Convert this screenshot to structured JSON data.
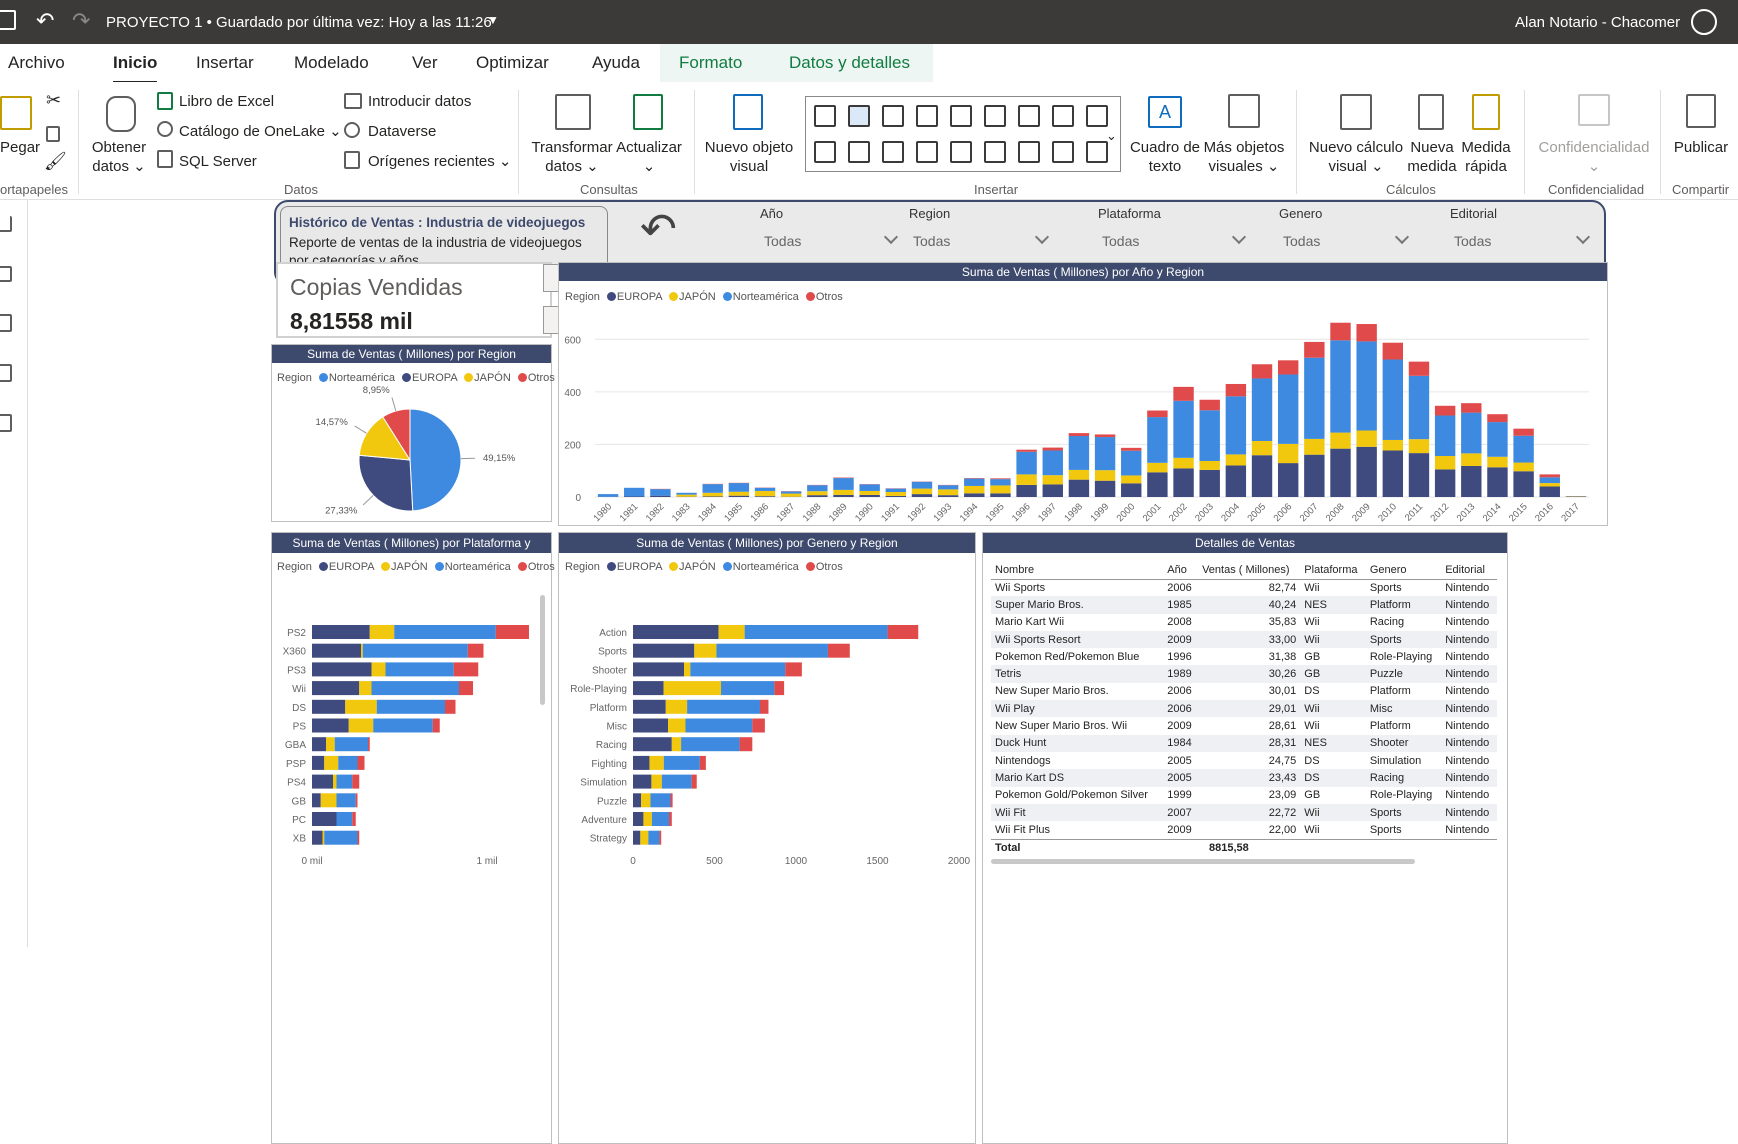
{
  "titlebar": {
    "title": "PROYECTO 1 • Guardado por última vez: Hoy a las 11:26",
    "user": "Alan Notario - Chacomer"
  },
  "menu": {
    "items": [
      "Archivo",
      "Inicio",
      "Insertar",
      "Modelado",
      "Ver",
      "Optimizar",
      "Ayuda"
    ],
    "context": [
      "Formato",
      "Datos y detalles"
    ]
  },
  "ribbon": {
    "pegar": "Pegar",
    "portapapeles": "ortapapeles",
    "obtener1": "Obtener",
    "obtener2": "datos",
    "excel": "Libro de Excel",
    "onelake": "Catálogo de OneLake",
    "sql": "SQL Server",
    "introducir": "Introducir datos",
    "dataverse": "Dataverse",
    "origenes": "Orígenes recientes",
    "datos": "Datos",
    "transformar1": "Transformar",
    "transformar2": "datos",
    "actualizar": "Actualizar",
    "consultas": "Consultas",
    "nuevo1": "Nuevo objeto",
    "nuevo2": "visual",
    "cuadro1": "Cuadro de",
    "cuadro2": "texto",
    "mas1": "Más objetos",
    "mas2": "visuales",
    "insertar": "Insertar",
    "calc1": "Nuevo cálculo",
    "calc2": "visual",
    "medida1": "Nueva",
    "medida2": "medida",
    "rapida1": "Medida",
    "rapida2": "rápida",
    "calculos": "Cálculos",
    "conf": "Confidencialidad",
    "confgroup": "Confidencialidad",
    "publicar": "Publicar",
    "compartir": "Compartir"
  },
  "header": {
    "title": "Histórico de Ventas : Industria de videojuegos",
    "subtitle1": "Reporte de ventas de la industria de videojuegos",
    "subtitle2": "por categorías y años"
  },
  "slicers": [
    {
      "label": "Año",
      "value": "Todas"
    },
    {
      "label": "Region",
      "value": "Todas"
    },
    {
      "label": "Plataforma",
      "value": "Todas"
    },
    {
      "label": "Genero",
      "value": "Todas"
    },
    {
      "label": "Editorial",
      "value": "Todas"
    }
  ],
  "card": {
    "label": "Copias Vendidas",
    "value": "8,81558 mil"
  },
  "colors": {
    "EUROPA": "#3f4b7e",
    "JAPON": "#f2c80f",
    "Norteamerica": "#3e8ae0",
    "Otros": "#e04a4a",
    "header": "#3e4a6d"
  },
  "legend_title": "Region",
  "pie": {
    "title": "Suma de Ventas ( Millones) por Region",
    "legend": [
      "Norteamérica",
      "EUROPA",
      "JAPÓN",
      "Otros"
    ],
    "chart_data": {
      "type": "pie",
      "labels": [
        "Norteamérica",
        "EUROPA",
        "JAPÓN",
        "Otros"
      ],
      "values": [
        49.15,
        27.33,
        14.57,
        8.95
      ],
      "data_labels": [
        "49,15%",
        "27,33%",
        "14,57%",
        "8,95%"
      ]
    }
  },
  "yearchart": {
    "title": "Suma de Ventas ( Millones) por Año y Region",
    "legend": [
      "EUROPA",
      "JAPÓN",
      "Norteamérica",
      "Otros"
    ],
    "yticks": [
      "0",
      "200",
      "400",
      "600"
    ],
    "chart_data": {
      "type": "bar",
      "stacked": true,
      "ylim": [
        0,
        700
      ],
      "categories": [
        "1980",
        "1981",
        "1982",
        "1983",
        "1984",
        "1985",
        "1986",
        "1987",
        "1988",
        "1989",
        "1990",
        "1991",
        "1992",
        "1993",
        "1994",
        "1995",
        "1996",
        "1997",
        "1998",
        "1999",
        "2000",
        "2001",
        "2002",
        "2003",
        "2004",
        "2005",
        "2006",
        "2007",
        "2008",
        "2009",
        "2010",
        "2011",
        "2012",
        "2013",
        "2014",
        "2015",
        "2016",
        "2017"
      ],
      "series": [
        {
          "name": "EUROPA",
          "values": [
            1,
            2,
            5,
            1,
            2,
            5,
            3,
            1,
            7,
            8,
            8,
            4,
            11,
            7,
            14,
            14,
            46,
            48,
            66,
            62,
            52,
            94,
            109,
            103,
            120,
            159,
            129,
            161,
            184,
            191,
            177,
            167,
            105,
            118,
            113,
            98,
            40,
            2
          ]
        },
        {
          "name": "JAPÓN",
          "values": [
            0,
            0,
            0,
            8,
            14,
            15,
            20,
            12,
            15,
            19,
            15,
            15,
            21,
            22,
            28,
            30,
            40,
            35,
            37,
            40,
            30,
            36,
            40,
            34,
            42,
            54,
            73,
            60,
            61,
            62,
            40,
            53,
            51,
            48,
            40,
            33,
            13,
            1
          ]
        },
        {
          "name": "Norteamérica",
          "values": [
            10,
            33,
            25,
            7,
            33,
            33,
            12,
            8,
            23,
            45,
            25,
            13,
            26,
            16,
            28,
            24,
            86,
            94,
            129,
            126,
            94,
            174,
            217,
            193,
            221,
            238,
            264,
            309,
            351,
            339,
            306,
            241,
            154,
            155,
            132,
            102,
            22,
            0
          ]
        },
        {
          "name": "Otros",
          "values": [
            0,
            0,
            1,
            0,
            1,
            1,
            1,
            1,
            1,
            2,
            1,
            1,
            1,
            1,
            2,
            3,
            8,
            11,
            11,
            10,
            11,
            25,
            53,
            40,
            47,
            54,
            54,
            60,
            67,
            66,
            64,
            54,
            37,
            36,
            30,
            27,
            11,
            0
          ]
        }
      ]
    }
  },
  "platchart": {
    "title": "Suma de Ventas ( Millones) por Plataforma y Region",
    "legend": [
      "EUROPA",
      "JAPÓN",
      "Norteamérica",
      "Otros"
    ],
    "xticks": [
      "0 mil",
      "1 mil"
    ],
    "chart_data": {
      "type": "bar",
      "orientation": "horizontal",
      "stacked": true,
      "xlim": [
        0,
        1.2
      ],
      "categories": [
        "PS2",
        "X360",
        "PS3",
        "Wii",
        "DS",
        "PS",
        "GBA",
        "PSP",
        "PS4",
        "GB",
        "PC",
        "XB"
      ],
      "series": [
        {
          "name": "EUROPA",
          "values": [
            0.33,
            0.28,
            0.34,
            0.27,
            0.19,
            0.21,
            0.08,
            0.07,
            0.12,
            0.05,
            0.14,
            0.06
          ]
        },
        {
          "name": "JAPÓN",
          "values": [
            0.14,
            0.01,
            0.08,
            0.07,
            0.18,
            0.14,
            0.05,
            0.08,
            0.02,
            0.09,
            0.0,
            0.01
          ]
        },
        {
          "name": "Norteamérica",
          "values": [
            0.58,
            0.6,
            0.39,
            0.5,
            0.39,
            0.34,
            0.19,
            0.11,
            0.09,
            0.11,
            0.09,
            0.19
          ]
        },
        {
          "name": "Otros",
          "values": [
            0.19,
            0.09,
            0.14,
            0.08,
            0.06,
            0.04,
            0.01,
            0.04,
            0.04,
            0.01,
            0.02,
            0.01
          ]
        }
      ]
    }
  },
  "genrechart": {
    "title": "Suma de Ventas ( Millones) por Genero y Region",
    "legend": [
      "EUROPA",
      "JAPÓN",
      "Norteamérica",
      "Otros"
    ],
    "xticks": [
      "0",
      "500",
      "1000",
      "1500",
      "2000"
    ],
    "chart_data": {
      "type": "bar",
      "orientation": "horizontal",
      "stacked": true,
      "xlim": [
        0,
        2000
      ],
      "categories": [
        "Action",
        "Sports",
        "Shooter",
        "Role-Playing",
        "Platform",
        "Misc",
        "Racing",
        "Fighting",
        "Simulation",
        "Puzzle",
        "Adventure",
        "Strategy"
      ],
      "series": [
        {
          "name": "EUROPA",
          "values": [
            525,
            376,
            313,
            188,
            201,
            215,
            238,
            101,
            113,
            50,
            64,
            45
          ]
        },
        {
          "name": "JAPÓN",
          "values": [
            160,
            136,
            39,
            352,
            131,
            107,
            57,
            88,
            64,
            57,
            52,
            49
          ]
        },
        {
          "name": "Norteamérica",
          "values": [
            877,
            684,
            582,
            327,
            447,
            410,
            359,
            221,
            183,
            123,
            105,
            68
          ]
        },
        {
          "name": "Otros",
          "values": [
            188,
            134,
            102,
            60,
            52,
            77,
            78,
            37,
            31,
            13,
            17,
            11
          ]
        }
      ]
    }
  },
  "detalles": {
    "title": "Detalles de Ventas",
    "columns": [
      "Nombre",
      "Año",
      "Ventas ( Millones)",
      "Plataforma",
      "Genero",
      "Editorial"
    ],
    "rows": [
      [
        "Wii Sports",
        "2006",
        "82,74",
        "Wii",
        "Sports",
        "Nintendo"
      ],
      [
        "Super Mario Bros.",
        "1985",
        "40,24",
        "NES",
        "Platform",
        "Nintendo"
      ],
      [
        "Mario Kart Wii",
        "2008",
        "35,83",
        "Wii",
        "Racing",
        "Nintendo"
      ],
      [
        "Wii Sports Resort",
        "2009",
        "33,00",
        "Wii",
        "Sports",
        "Nintendo"
      ],
      [
        "Pokemon Red/Pokemon Blue",
        "1996",
        "31,38",
        "GB",
        "Role-Playing",
        "Nintendo"
      ],
      [
        "Tetris",
        "1989",
        "30,26",
        "GB",
        "Puzzle",
        "Nintendo"
      ],
      [
        "New Super Mario Bros.",
        "2006",
        "30,01",
        "DS",
        "Platform",
        "Nintendo"
      ],
      [
        "Wii Play",
        "2006",
        "29,01",
        "Wii",
        "Misc",
        "Nintendo"
      ],
      [
        "New Super Mario Bros. Wii",
        "2009",
        "28,61",
        "Wii",
        "Platform",
        "Nintendo"
      ],
      [
        "Duck Hunt",
        "1984",
        "28,31",
        "NES",
        "Shooter",
        "Nintendo"
      ],
      [
        "Nintendogs",
        "2005",
        "24,75",
        "DS",
        "Simulation",
        "Nintendo"
      ],
      [
        "Mario Kart DS",
        "2005",
        "23,43",
        "DS",
        "Racing",
        "Nintendo"
      ],
      [
        "Pokemon Gold/Pokemon Silver",
        "1999",
        "23,09",
        "GB",
        "Role-Playing",
        "Nintendo"
      ],
      [
        "Wii Fit",
        "2007",
        "22,72",
        "Wii",
        "Sports",
        "Nintendo"
      ],
      [
        "Wii Fit Plus",
        "2009",
        "22,00",
        "Wii",
        "Sports",
        "Nintendo"
      ]
    ],
    "total_label": "Total",
    "total_value": "8815,58"
  }
}
